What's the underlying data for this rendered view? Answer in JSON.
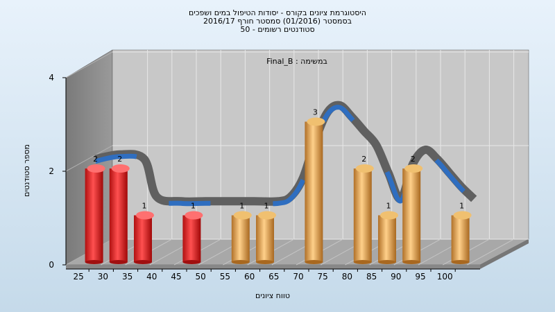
{
  "chart_data": {
    "type": "bar",
    "title_lines": [
      "היסטוגרמת ציונים בקורס - יסודות הטיפול במים ושפכים",
      "בסמסטר  (01/2016)  סמסטר חורף 2016/17",
      "סטודנטים רשומים - 50"
    ],
    "subtitle": "במשימה : Final_B",
    "xlabel": "טווח ציונים",
    "ylabel": "מספר סטודנטים",
    "x_ticks": [
      "25",
      "30",
      "35",
      "40",
      "45",
      "50",
      "55",
      "60",
      "65",
      "70",
      "75",
      "80",
      "85",
      "90",
      "95",
      "100"
    ],
    "y_ticks": [
      "0",
      "2",
      "4"
    ],
    "ylim": [
      0,
      4
    ],
    "bars": [
      {
        "x": 27.5,
        "value": 2,
        "label": "2",
        "color": "red"
      },
      {
        "x": 32.5,
        "value": 2,
        "label": "2",
        "color": "red"
      },
      {
        "x": 37.5,
        "value": 1,
        "label": "1",
        "color": "red"
      },
      {
        "x": 47.5,
        "value": 1,
        "label": "1",
        "color": "red"
      },
      {
        "x": 57.5,
        "value": 1,
        "label": "1",
        "color": "orange"
      },
      {
        "x": 62.5,
        "value": 1,
        "label": "1",
        "color": "orange"
      },
      {
        "x": 72.5,
        "value": 3,
        "label": "3",
        "color": "orange"
      },
      {
        "x": 82.5,
        "value": 2,
        "label": "2",
        "color": "orange"
      },
      {
        "x": 87.5,
        "value": 1,
        "label": "1",
        "color": "orange"
      },
      {
        "x": 92.5,
        "value": 2,
        "label": "2",
        "color": "orange"
      },
      {
        "x": 102.5,
        "value": 1,
        "label": "1",
        "color": "orange"
      }
    ],
    "curve": {
      "x": [
        27.5,
        32.5,
        37.5,
        40,
        45,
        50,
        55,
        60,
        65,
        67.5,
        70,
        72.5,
        75,
        77.5,
        80,
        82.5,
        85,
        87.5,
        90,
        92.5,
        95,
        97.5,
        100,
        102.5,
        105
      ],
      "y": [
        2.2,
        2.3,
        2.2,
        1.4,
        1.3,
        1.3,
        1.3,
        1.3,
        1.3,
        1.4,
        1.8,
        2.6,
        3.2,
        3.35,
        3.1,
        2.8,
        2.5,
        1.9,
        1.35,
        2.1,
        2.4,
        2.2,
        1.9,
        1.6,
        1.35
      ]
    },
    "colors": {
      "red": "#e02020",
      "orange": "#e0a040",
      "curve_front": "#2f6ec0",
      "curve_back": "#606060"
    }
  }
}
